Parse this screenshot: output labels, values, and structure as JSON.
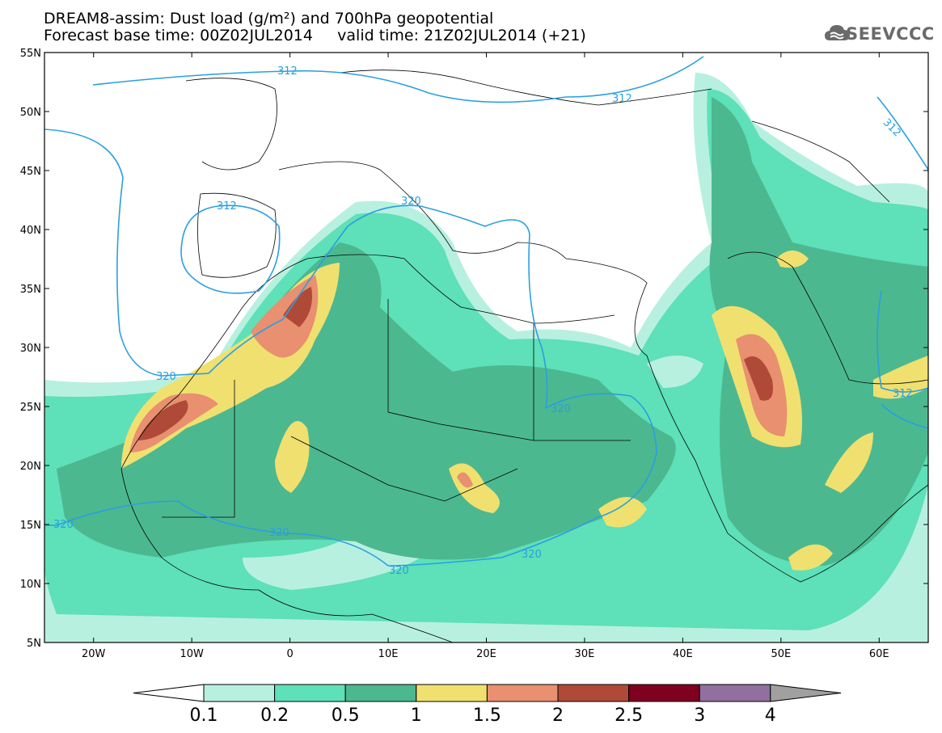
{
  "header": {
    "line1": "DREAM8-assim: Dust load (g/m²) and 700hPa geopotential",
    "line2": "Forecast base time: 00Z02JUL2014     valid time: 21Z02JUL2014 (+21)"
  },
  "logo": {
    "icon": "cloud-icon",
    "text": "SEEVCCC"
  },
  "axes": {
    "lat_labels": [
      "55N",
      "50N",
      "45N",
      "40N",
      "35N",
      "30N",
      "25N",
      "20N",
      "15N",
      "10N",
      "5N"
    ],
    "lon_labels": [
      "20W",
      "10W",
      "0",
      "10E",
      "20E",
      "30E",
      "40E",
      "50E",
      "60E"
    ],
    "lat_range": [
      5,
      55
    ],
    "lon_range": [
      -25,
      65
    ]
  },
  "colorbar": {
    "levels": [
      "0.1",
      "0.2",
      "0.5",
      "1",
      "1.5",
      "2",
      "2.5",
      "3",
      "4"
    ],
    "colors": [
      "#ffffff",
      "#b8f0e0",
      "#5ee0b8",
      "#4cb890",
      "#f0e070",
      "#e89070",
      "#b04a38",
      "#800020",
      "#9070a0",
      "#a0a0a0"
    ]
  },
  "contour_labels": [
    "312",
    "312",
    "312",
    "312",
    "320",
    "320",
    "320",
    "320",
    "320",
    "320",
    "320",
    "312"
  ]
}
